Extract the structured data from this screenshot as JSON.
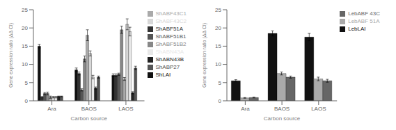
{
  "chart_data": [
    {
      "type": "bar",
      "categories": [
        "Ara",
        "BAOS",
        "LAOS"
      ],
      "xlabel": "Carbon source",
      "ylabel": "Gene expression ratio (ΔΔ CI)",
      "ylim": [
        0,
        25
      ],
      "yticks": [
        0,
        5,
        10,
        15,
        20,
        25
      ],
      "legend": "right",
      "series": [
        {
          "name": "ShLAI",
          "color": "#111111",
          "values": [
            15.0,
            8.5,
            7.0
          ],
          "errors": [
            0.5,
            0.5,
            0.4
          ]
        },
        {
          "name": "ShABF51A",
          "color": "#333333",
          "values": [
            1.0,
            7.5,
            7.0
          ],
          "errors": [
            0.2,
            0.4,
            0.4
          ]
        },
        {
          "name": "ShABF51B1",
          "color": "#555555",
          "values": [
            2.0,
            3.0,
            7.3
          ],
          "errors": [
            0.3,
            0.3,
            0.3
          ]
        },
        {
          "name": "ShABF51B2",
          "color": "#888888",
          "values": [
            2.0,
            11.5,
            19.5
          ],
          "errors": [
            0.4,
            0.8,
            1.0
          ]
        },
        {
          "name": "ShABF43C1",
          "color": "#aaaaaa",
          "values": [
            1.0,
            18.0,
            6.0
          ],
          "errors": [
            0.3,
            1.5,
            0.4
          ]
        },
        {
          "name": "ShABF43C2",
          "color": "#d8d8d8",
          "values": [
            1.0,
            13.0,
            21.0
          ],
          "errors": [
            0.2,
            0.7,
            1.5
          ]
        },
        {
          "name": "ShABN43A",
          "color": "#e8e8e8",
          "values": [
            1.0,
            6.5,
            19.0
          ],
          "errors": [
            0.2,
            0.5,
            1.2
          ]
        },
        {
          "name": "ShABN43B",
          "color": "#222222",
          "values": [
            1.2,
            3.5,
            2.2
          ],
          "errors": [
            0.1,
            0.3,
            0.3
          ]
        },
        {
          "name": "ShABP27",
          "color": "#555555",
          "values": [
            1.2,
            6.5,
            9.0
          ],
          "errors": [
            0.1,
            0.3,
            0.5
          ]
        }
      ]
    },
    {
      "type": "bar",
      "categories": [
        "Ara",
        "BAOS",
        "LAOS"
      ],
      "xlabel": "Carbon source",
      "ylabel": "Gene expression ratio (ΔΔ CI)",
      "ylim": [
        0,
        25
      ],
      "yticks": [
        0,
        5,
        10,
        15,
        20,
        25
      ],
      "legend": "right",
      "series": [
        {
          "name": "LebLAI",
          "color": "#111111",
          "values": [
            5.5,
            18.5,
            17.5
          ],
          "errors": [
            0.3,
            0.7,
            1.0
          ]
        },
        {
          "name": "LebABF 51A",
          "color": "#aaaaaa",
          "values": [
            0.8,
            7.5,
            6.0
          ],
          "errors": [
            0.1,
            0.4,
            0.5
          ]
        },
        {
          "name": "LebABF 43C",
          "color": "#666666",
          "values": [
            0.9,
            6.5,
            5.5
          ],
          "errors": [
            0.1,
            0.3,
            0.4
          ]
        }
      ]
    }
  ]
}
